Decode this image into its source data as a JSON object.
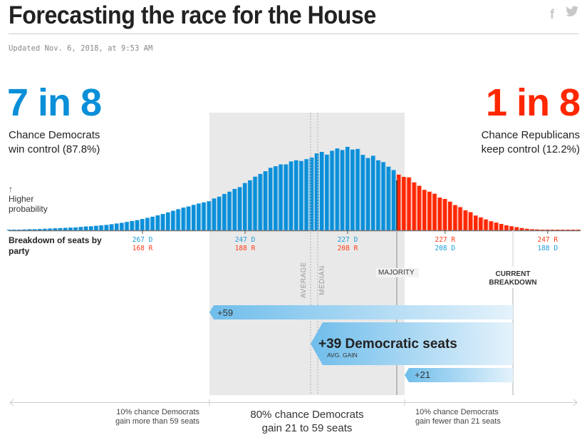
{
  "header": {
    "title": "Forecasting the race for the House",
    "updated": "Updated Nov. 6, 2018, at 9:53 AM",
    "social": {
      "facebook_icon": "f",
      "twitter_icon": "🐦"
    }
  },
  "summary": {
    "dem": {
      "odds": "7 in 8",
      "line1": "Chance Democrats",
      "line2": "win control (87.8%)",
      "color": "#0a8fd8"
    },
    "rep": {
      "odds": "1 in 8",
      "line1": "Chance Republicans",
      "line2": "keep control (12.2%)",
      "color": "#ff2700"
    }
  },
  "labels": {
    "arrow_up": "↑",
    "higher": "Higher",
    "probability": "probability",
    "breakdown_line1": "Breakdown of seats by",
    "breakdown_line2": "party",
    "average": "AVERAGE",
    "median": "MEDIAN",
    "majority": "MAJORITY",
    "current_line1": "CURRENT",
    "current_line2": "BREAKDOWN"
  },
  "ticks": [
    {
      "top": "267 D",
      "bottom": "168 R",
      "top_party": "d",
      "dem_seats": 267
    },
    {
      "top": "247 D",
      "bottom": "188 R",
      "top_party": "d",
      "dem_seats": 247
    },
    {
      "top": "227 D",
      "bottom": "208 R",
      "top_party": "d",
      "dem_seats": 227
    },
    {
      "top": "227 R",
      "bottom": "208 D",
      "top_party": "r",
      "dem_seats": 208
    },
    {
      "top": "247 R",
      "bottom": "188 D",
      "top_party": "r",
      "dem_seats": 188
    }
  ],
  "ranges": {
    "high": {
      "label": "+59"
    },
    "avg": {
      "label": "+39 Democratic seats",
      "sub": "AVG. GAIN"
    },
    "low": {
      "label": "+21"
    }
  },
  "bottom": {
    "left_line1": "10% chance Democrats",
    "left_line2": "gain more than 59 seats",
    "mid_line1": "80% chance Democrats",
    "mid_line2": "gain 21 to 59 seats",
    "right_line1": "10% chance Democrats",
    "right_line2": "gain fewer than 21 seats"
  },
  "chart_data": {
    "type": "bar",
    "title": "Distribution of Democratic House seats",
    "xlabel": "Breakdown of seats by party",
    "ylabel": "Higher probability",
    "x_direction": "Democratic seats decreasing left to right",
    "seat_range": [
      293,
      182
    ],
    "majority_dem_seats": 218,
    "current_dem_seats": 195,
    "average_dem_seats": 234,
    "median_dem_seats": 233,
    "band_80pct_dem_seats": [
      254,
      216
    ],
    "dem_color": "#0a8fd8",
    "rep_color": "#ff2700",
    "probabilities": [
      0.02,
      0.03,
      0.03,
      0.04,
      0.05,
      0.05,
      0.06,
      0.07,
      0.08,
      0.09,
      0.1,
      0.11,
      0.12,
      0.13,
      0.15,
      0.17,
      0.18,
      0.2,
      0.22,
      0.24,
      0.27,
      0.3,
      0.33,
      0.37,
      0.41,
      0.45,
      0.5,
      0.55,
      0.6,
      0.66,
      0.72,
      0.79,
      0.86,
      0.93,
      1.0,
      1.05,
      1.12,
      1.18,
      1.23,
      1.28,
      1.4,
      1.48,
      1.6,
      1.7,
      1.82,
      1.9,
      2.08,
      2.2,
      2.36,
      2.48,
      2.6,
      2.75,
      2.82,
      2.9,
      2.9,
      3.03,
      3.08,
      3.05,
      3.13,
      3.2,
      3.38,
      3.45,
      3.33,
      3.5,
      3.6,
      3.53,
      3.67,
      3.55,
      3.58,
      3.32,
      3.18,
      3.28,
      3.08,
      3.0,
      2.8,
      2.65,
      2.45,
      2.35,
      2.33,
      2.11,
      1.96,
      1.78,
      1.7,
      1.61,
      1.44,
      1.38,
      1.26,
      1.11,
      1.02,
      0.88,
      0.8,
      0.65,
      0.57,
      0.48,
      0.4,
      0.34,
      0.28,
      0.22,
      0.18,
      0.14,
      0.1,
      0.07,
      0.05,
      0.04,
      0.03,
      0.02,
      0.02,
      0.01,
      0.01,
      0.01,
      0.01,
      0.01
    ],
    "probability_scale_max": 3.7
  }
}
